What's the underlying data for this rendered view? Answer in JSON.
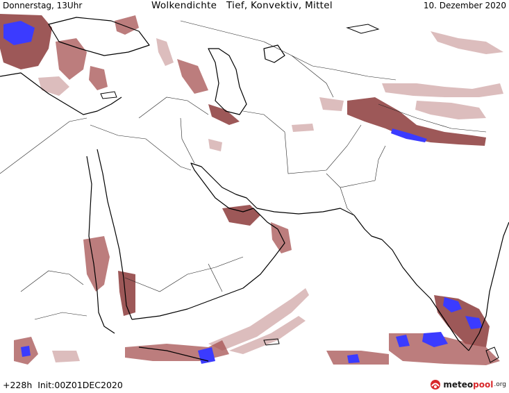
{
  "header": {
    "left": "Donnerstag, 13Uhr",
    "center": "Wolkendichte   Tief, Konvektiv, Mittel",
    "right": "10. Dezember 2020"
  },
  "footer": {
    "info": "+228h  Init:00Z01DEC2020",
    "brand_prefix": "meteo",
    "brand_highlight": "pool",
    "brand_tld": ".org"
  },
  "colors": {
    "cloud_dense": "#8c3b3b",
    "cloud_medium": "#a55252",
    "cloud_light": "#c99a9a",
    "convective": "#3b3bff",
    "brand_red": "#d8282b"
  },
  "icons": {
    "logo": "meteopool-logo-icon"
  }
}
